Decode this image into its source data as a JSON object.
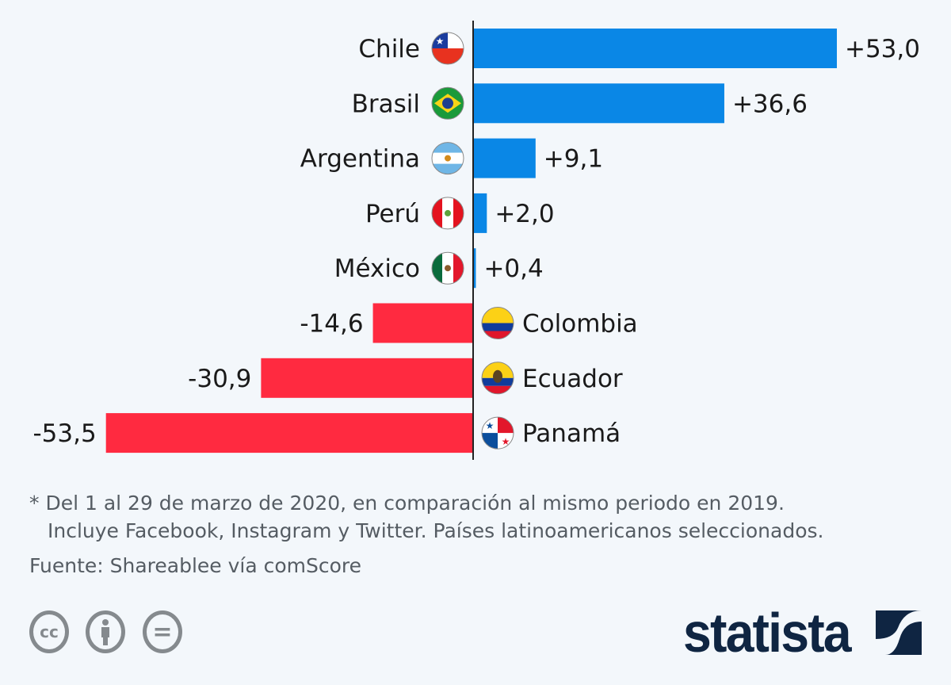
{
  "chart_data": {
    "type": "bar",
    "orientation": "horizontal",
    "categories": [
      "Chile",
      "Brasil",
      "Argentina",
      "Perú",
      "México",
      "Colombia",
      "Ecuador",
      "Panamá"
    ],
    "values": [
      53.0,
      36.6,
      9.1,
      2.0,
      0.4,
      -14.6,
      -30.9,
      -53.5
    ],
    "value_labels": [
      "+53,0",
      "+36,6",
      "+9,1",
      "+2,0",
      "+0,4",
      "-14,6",
      "-30,9",
      "-53,5"
    ],
    "flags": [
      "chile",
      "brazil",
      "argentina",
      "peru",
      "mexico",
      "colombia",
      "ecuador",
      "panama"
    ],
    "colors": {
      "positive": "#0a87e6",
      "negative": "#ff2a40"
    },
    "xlim": [
      -53.5,
      53.0
    ],
    "grid": false,
    "title": "",
    "xlabel": "",
    "ylabel": ""
  },
  "footnote": {
    "line1": "* Del 1 al 29 de marzo de 2020, en comparación al mismo periodo en 2019.",
    "line2": "Incluye Facebook, Instagram y Twitter. Países latinoamericanos seleccionados.",
    "source": "Fuente: Shareablee vía comScore"
  },
  "license": {
    "cc": "cc",
    "eq": "="
  },
  "logo": "statista"
}
